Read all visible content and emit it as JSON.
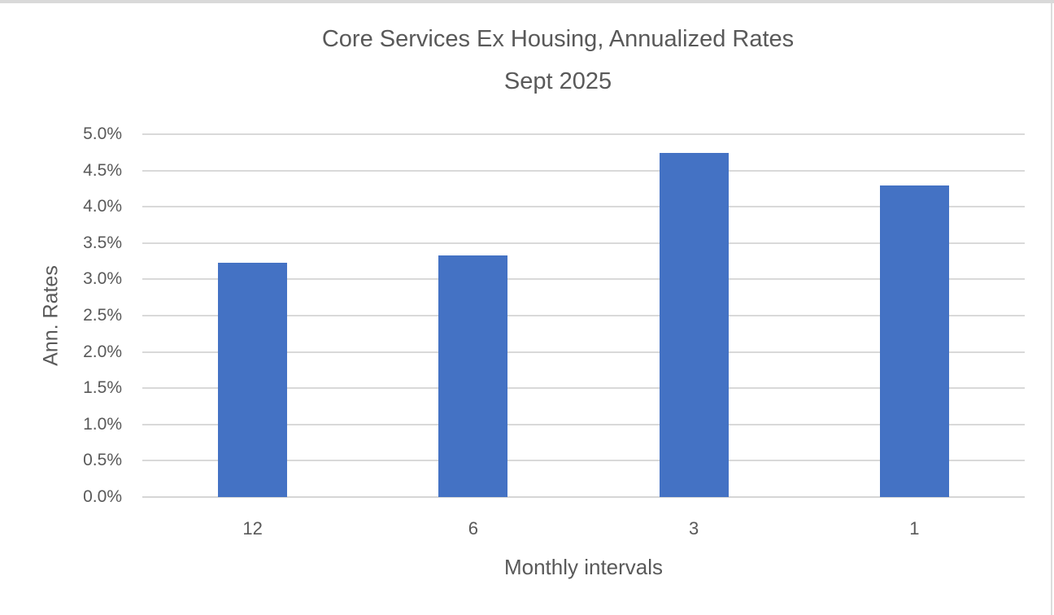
{
  "chart_data": {
    "type": "bar",
    "title": "Core Services Ex Housing, Annualized Rates",
    "subtitle": "Sept 2025",
    "categories": [
      "12",
      "6",
      "3",
      "1"
    ],
    "values": [
      3.23,
      3.33,
      4.74,
      4.29
    ],
    "xlabel": "Monthly intervals",
    "ylabel": "Ann. Rates",
    "ylim": [
      0,
      5.0
    ],
    "ytick_step": 0.5,
    "ytick_suffix": "%",
    "grid": true,
    "legend": "none",
    "bar_color": "#4472c4"
  },
  "colors": {
    "text": "#595959",
    "gridline": "#d9d9d9",
    "axis_line": "#d6d6d6",
    "bar": "#4472c4",
    "top_strip": "#d9d9d9"
  }
}
